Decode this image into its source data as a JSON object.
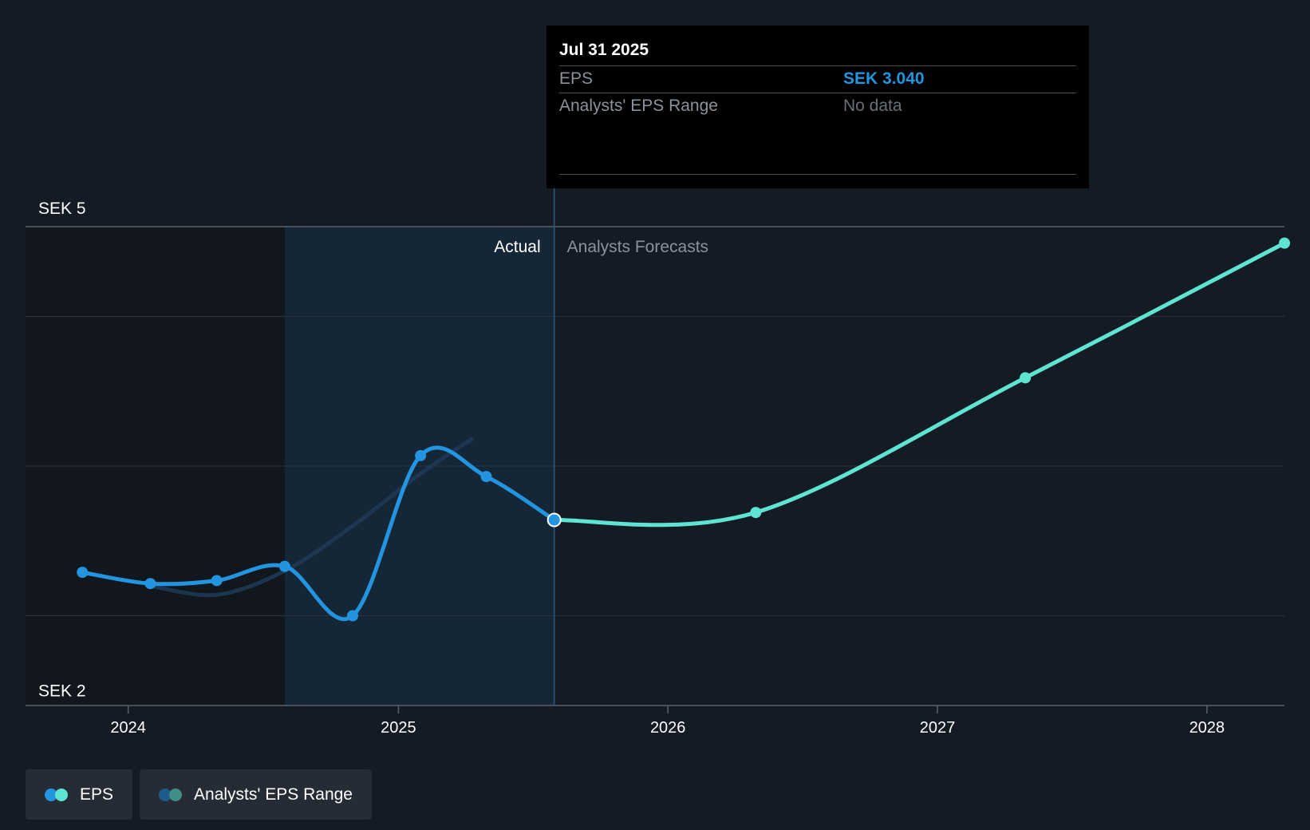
{
  "tooltip": {
    "date": "Jul 31 2025",
    "rows": [
      {
        "label": "EPS",
        "value": "SEK 3.040"
      },
      {
        "label": "Analysts' EPS Range",
        "value": "No data"
      }
    ]
  },
  "legend": [
    {
      "label": "EPS",
      "colors": [
        "#2394df",
        "#5ee4d2"
      ]
    },
    {
      "label": "Analysts' EPS Range",
      "colors": [
        "#1f5a8a",
        "#3f8f86"
      ]
    }
  ],
  "colors": {
    "actual": "#2394df",
    "forecast": "#5ee4d2",
    "range": "#1e3a55",
    "background": "#151b24"
  },
  "chart_data": {
    "type": "line",
    "y_axis_labels": [
      {
        "value": 5,
        "label": "SEK 5"
      },
      {
        "value": 2,
        "label": "SEK 2"
      }
    ],
    "ylim": [
      1.8,
      5.0
    ],
    "xlim": [
      "2023-08-15",
      "2028-04-15"
    ],
    "x_ticks": [
      {
        "x": "2024-01-01",
        "label": "2024"
      },
      {
        "x": "2025-01-01",
        "label": "2025"
      },
      {
        "x": "2026-01-01",
        "label": "2026"
      },
      {
        "x": "2027-01-01",
        "label": "2027"
      },
      {
        "x": "2028-01-01",
        "label": "2028"
      }
    ],
    "gridlines_y": [
      5.0,
      4.4,
      3.4,
      2.4
    ],
    "region_labels": {
      "actual": "Actual",
      "forecast": "Analysts Forecasts"
    },
    "past_year_start": "2024-07-31",
    "divider": "2025-07-31",
    "series": [
      {
        "name": "EPS",
        "kind": "actual",
        "points": [
          {
            "x": "2023-10-31",
            "y": 2.69
          },
          {
            "x": "2024-01-31",
            "y": 2.615
          },
          {
            "x": "2024-04-30",
            "y": 2.635
          },
          {
            "x": "2024-07-31",
            "y": 2.73
          },
          {
            "x": "2024-10-31",
            "y": 2.4
          },
          {
            "x": "2025-01-31",
            "y": 3.47
          },
          {
            "x": "2025-04-30",
            "y": 3.33
          },
          {
            "x": "2025-07-31",
            "y": 3.04
          }
        ]
      },
      {
        "name": "EPS",
        "kind": "forecast",
        "points": [
          {
            "x": "2025-07-31",
            "y": 3.04
          },
          {
            "x": "2026-04-30",
            "y": 3.09
          },
          {
            "x": "2027-04-30",
            "y": 3.99
          },
          {
            "x": "2028-04-15",
            "y": 4.89
          }
        ]
      },
      {
        "name": "Analysts' EPS Range",
        "kind": "range",
        "points": [
          {
            "x": "2024-01-31",
            "y": 2.6
          },
          {
            "x": "2024-04-30",
            "y": 2.54
          },
          {
            "x": "2024-07-31",
            "y": 2.7
          },
          {
            "x": "2024-10-31",
            "y": 3.0
          },
          {
            "x": "2025-01-31",
            "y": 3.35
          },
          {
            "x": "2025-04-10",
            "y": 3.58
          }
        ]
      }
    ]
  }
}
